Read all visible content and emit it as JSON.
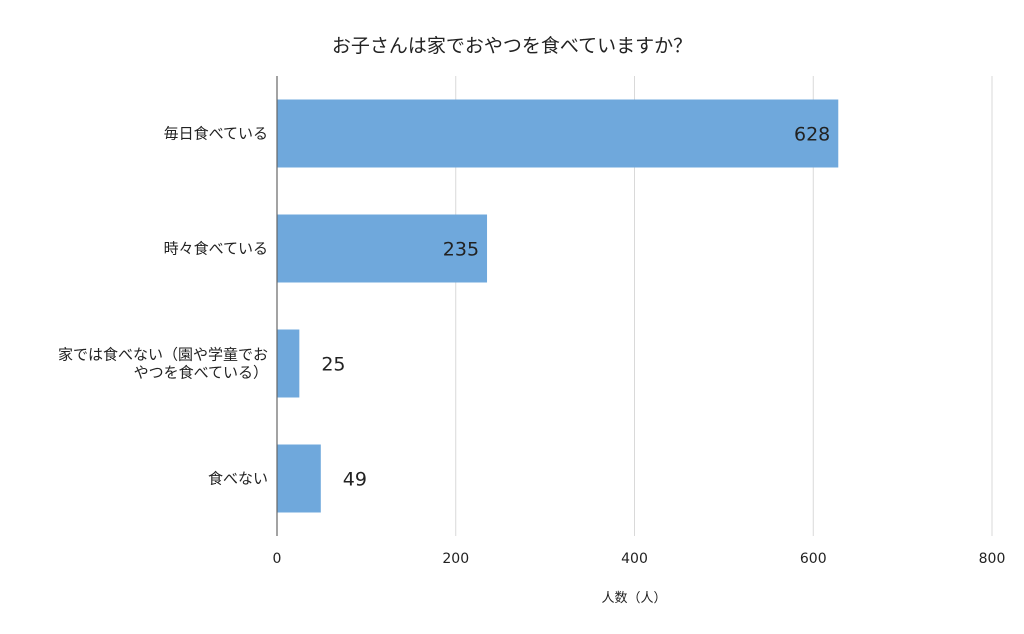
{
  "chart_data": {
    "type": "bar",
    "orientation": "horizontal",
    "title": "お子さんは家でおやつを食べていますか？",
    "xlabel": "人数（人）",
    "ylabel": "",
    "categories": [
      [
        "毎日食べている"
      ],
      [
        "時々食べている"
      ],
      [
        "家では食べない（園や学童でお",
        "やつを食べている）"
      ],
      [
        "食べない"
      ]
    ],
    "values": [
      628,
      235,
      25,
      49
    ],
    "xlim": [
      0,
      800
    ],
    "xticks": [
      0,
      200,
      400,
      600,
      800
    ],
    "grid": true,
    "legend": "none",
    "colors": {
      "bar": "#6fa8dc",
      "grid": "#d9d9d9",
      "axis": "#666666"
    }
  }
}
